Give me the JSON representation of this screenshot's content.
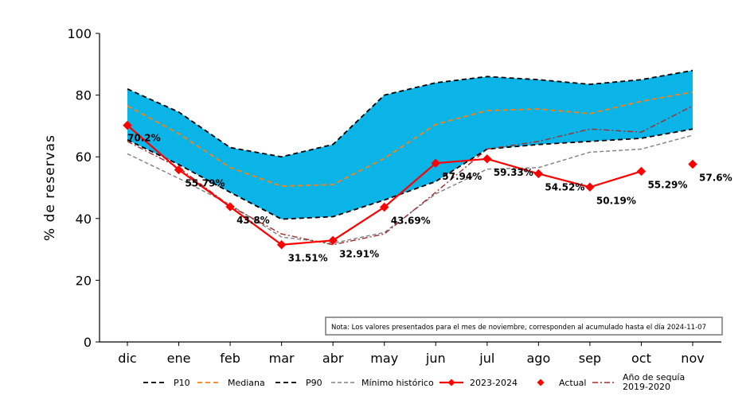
{
  "chart_data": {
    "type": "line",
    "title": "",
    "xlabel": "",
    "ylabel": "% de reservas",
    "ylim": [
      0,
      100
    ],
    "yticks": [
      0,
      20,
      40,
      60,
      80,
      100
    ],
    "categories": [
      "dic",
      "ene",
      "feb",
      "mar",
      "abr",
      "may",
      "jun",
      "jul",
      "ago",
      "sep",
      "oct",
      "nov"
    ],
    "series": [
      {
        "name": "P10",
        "style": "dashed",
        "color": "#000000",
        "values": [
          65.5,
          57.5,
          48.5,
          39.8,
          40.6,
          46.0,
          52.0,
          62.5,
          64.0,
          65.0,
          66.0,
          69.0
        ]
      },
      {
        "name": "Mediana",
        "style": "dashed",
        "color": "#ff7f0e",
        "values": [
          76.5,
          67.5,
          56.5,
          50.5,
          51.0,
          59.5,
          70.5,
          75.0,
          75.5,
          74.0,
          78.0,
          81.0
        ]
      },
      {
        "name": "P90",
        "style": "dashed",
        "color": "#000000",
        "values": [
          82.0,
          74.5,
          63.0,
          60.0,
          64.0,
          80.0,
          84.0,
          86.0,
          85.0,
          83.5,
          85.0,
          88.0
        ]
      },
      {
        "name": "Mínimo histórico",
        "style": "dashed-thin",
        "color": "#808080",
        "values": [
          61.0,
          53.0,
          44.5,
          34.0,
          32.0,
          35.5,
          48.0,
          56.0,
          56.5,
          61.5,
          62.5,
          67.0
        ]
      },
      {
        "name": "2023-2024",
        "style": "solid-marker",
        "color": "#ff0000",
        "values": [
          70.2,
          55.79,
          43.8,
          31.51,
          32.91,
          43.69,
          57.94,
          59.33,
          54.52,
          50.19,
          55.29,
          null
        ]
      },
      {
        "name": "Actual",
        "style": "marker",
        "color": "#ff0000",
        "values": [
          null,
          null,
          null,
          null,
          null,
          null,
          null,
          null,
          null,
          null,
          null,
          57.6
        ]
      },
      {
        "name": "Año de sequía\n2019-2020",
        "style": "dashdot",
        "color": "#a52a2a",
        "values": [
          65.0,
          56.5,
          44.0,
          35.0,
          31.5,
          35.0,
          48.5,
          62.5,
          65.0,
          69.0,
          68.0,
          76.5
        ]
      }
    ],
    "band": {
      "from_series": "P10",
      "to_series": "P90",
      "color": "#0bb4e6"
    },
    "data_labels": [
      {
        "index": 0,
        "text": "70.2%"
      },
      {
        "index": 1,
        "text": "55.79%"
      },
      {
        "index": 2,
        "text": "43.8%"
      },
      {
        "index": 3,
        "text": "31.51%"
      },
      {
        "index": 4,
        "text": "32.91%"
      },
      {
        "index": 5,
        "text": "43.69%"
      },
      {
        "index": 6,
        "text": "57.94%"
      },
      {
        "index": 7,
        "text": "59.33%"
      },
      {
        "index": 8,
        "text": "54.52%"
      },
      {
        "index": 9,
        "text": "50.19%"
      },
      {
        "index": 10,
        "text": "55.29%"
      },
      {
        "index": 11,
        "text": "57.6%"
      }
    ],
    "annotation": "Nota: Los valores presentados para el mes de noviembre, corresponden al acumulado hasta el día 2024-11-07",
    "grid": false,
    "legend_position": "bottom"
  }
}
